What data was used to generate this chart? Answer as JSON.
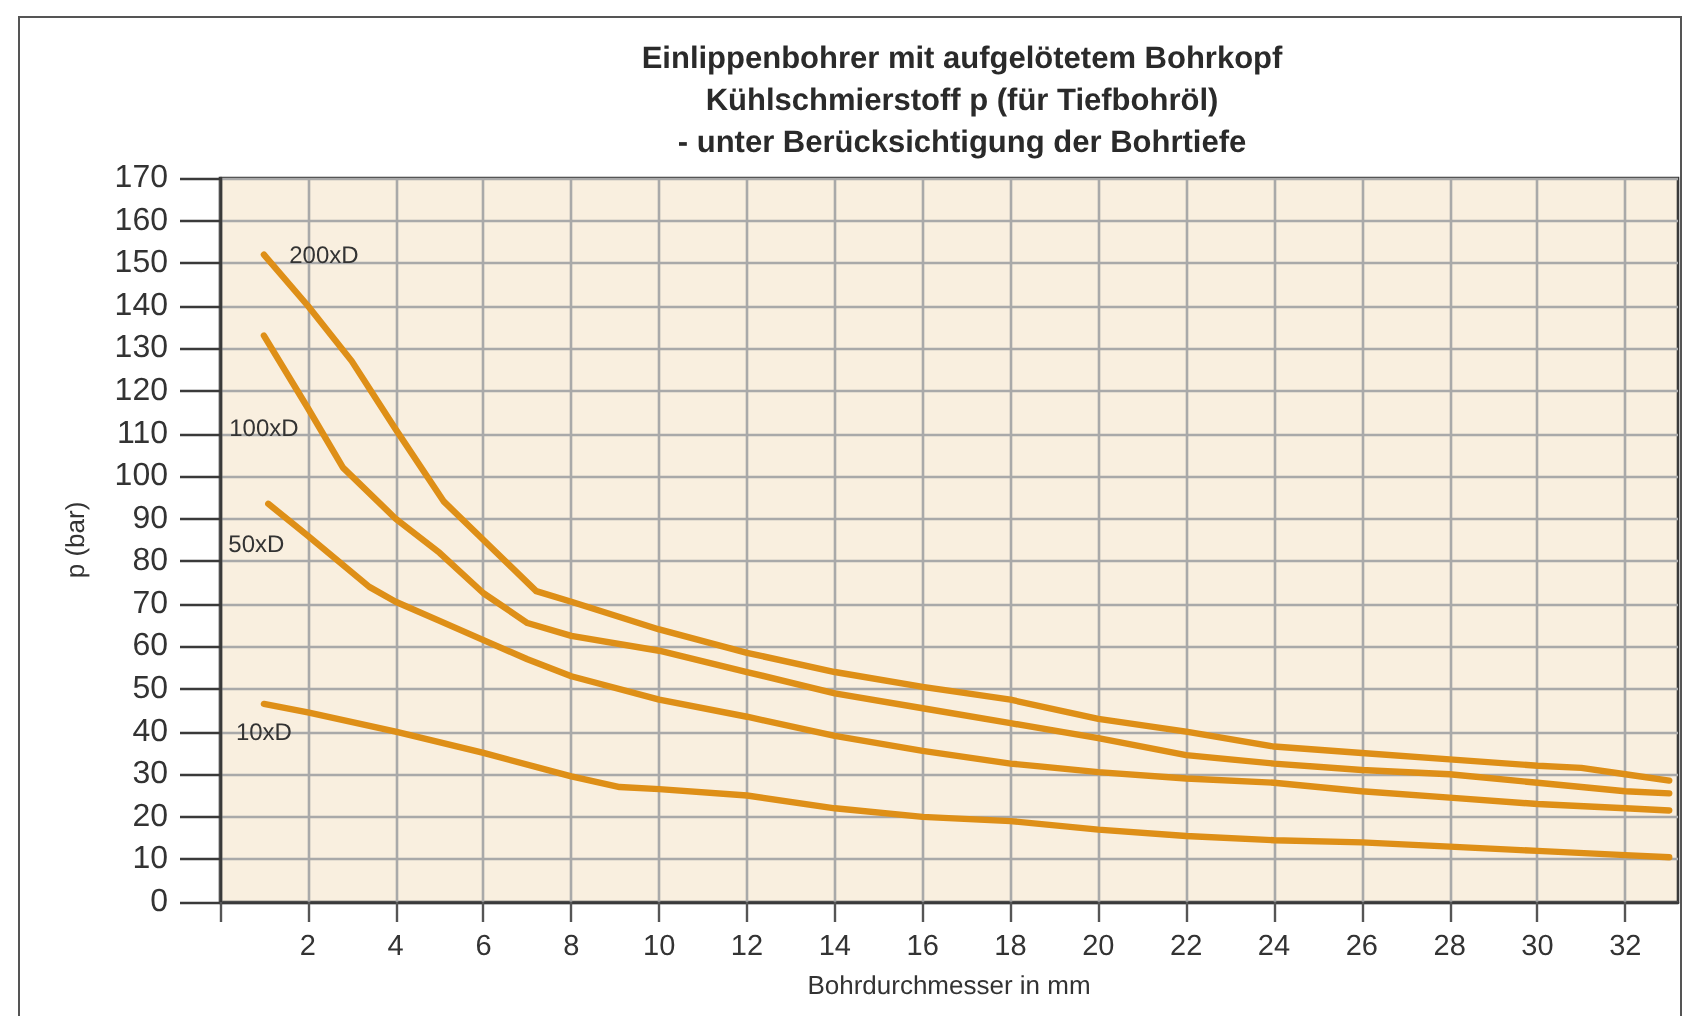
{
  "chart_data": {
    "type": "line",
    "title": "Einlippenbohrer mit aufgelötetem Bohrkopf\nKühlschmierstoff p (für Tiefbohröl)\n- unter Berücksichtigung der Bohrtiefe",
    "xlabel": "Bohrdurchmesser in mm",
    "ylabel": "p (bar)",
    "xlim": [
      0,
      33.2
    ],
    "xticks": [
      {
        "value": 0,
        "label": null
      },
      2,
      4,
      6,
      8,
      10,
      12,
      14,
      16,
      18,
      20,
      22,
      24,
      26,
      28,
      30,
      32
    ],
    "ylim": [
      0,
      170
    ],
    "yticks": [
      0,
      10,
      20,
      30,
      40,
      50,
      60,
      70,
      80,
      90,
      100,
      110,
      120,
      130,
      140,
      150,
      160,
      170
    ],
    "grid": true,
    "series": [
      {
        "name": "200xD",
        "color": "#de8f17",
        "x": [
          1,
          2,
          3,
          4,
          5.1,
          6,
          7.2,
          8,
          10,
          12,
          14,
          16,
          18,
          20,
          22,
          24,
          26,
          28,
          30,
          31,
          32,
          33
        ],
        "values": [
          152,
          140,
          127,
          111,
          94,
          85,
          73,
          70.5,
          64,
          58.5,
          54,
          50.5,
          47.5,
          43,
          40,
          36.5,
          35,
          33.5,
          32,
          31.5,
          30,
          28.5
        ]
      },
      {
        "name": "100xD",
        "color": "#de8f17",
        "x": [
          1,
          2,
          2.8,
          4,
          5,
          6,
          7,
          8,
          10,
          12,
          14,
          16,
          18,
          20,
          22,
          24,
          26,
          28,
          30,
          31,
          32,
          33
        ],
        "values": [
          133,
          116,
          102,
          90,
          82,
          72.5,
          65.5,
          62.5,
          59,
          54,
          49,
          45.5,
          42,
          38.5,
          34.5,
          32.5,
          31,
          30,
          28,
          27,
          26,
          25.5
        ]
      },
      {
        "name": "50xD",
        "color": "#de8f17",
        "x": [
          1.1,
          2,
          3.4,
          4,
          5,
          6,
          7,
          8,
          10,
          12,
          14,
          16,
          18,
          20,
          22,
          24,
          26,
          28,
          30,
          32,
          33
        ],
        "values": [
          93.5,
          86,
          74,
          70.5,
          66,
          61.5,
          57,
          53,
          47.5,
          43.5,
          39,
          35.5,
          32.5,
          30.5,
          29,
          28,
          26,
          24.5,
          23,
          22,
          21.5
        ]
      },
      {
        "name": "10xD",
        "color": "#de8f17",
        "x": [
          1,
          2,
          4,
          6,
          8,
          9.1,
          10,
          12,
          14,
          16,
          18,
          20,
          22,
          24,
          26,
          28,
          30,
          32,
          33
        ],
        "values": [
          46.5,
          44.5,
          40,
          35,
          29.5,
          27,
          26.5,
          25,
          22,
          20,
          19,
          17,
          15.5,
          14.5,
          14,
          13,
          12,
          11,
          10.5
        ]
      }
    ]
  }
}
